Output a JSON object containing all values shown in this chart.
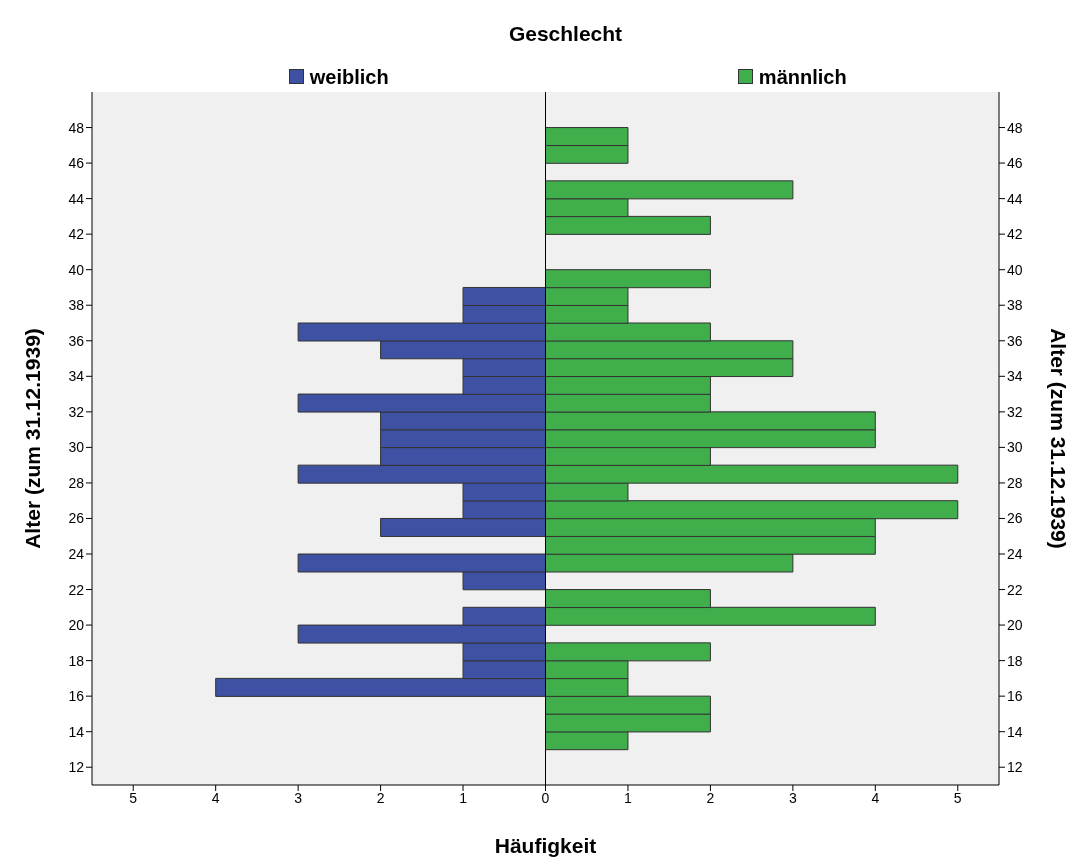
{
  "chart_data": {
    "type": "bar",
    "orientation": "horizontal",
    "stacked": true,
    "legend_title": "Geschlecht",
    "xlabel": "Häufigkeit",
    "ylabel": "Alter (zum 31.12.1939)",
    "y2label": "Alter (zum 31.12.1939)",
    "x": [
      13.5,
      14.5,
      15.5,
      16.5,
      17.5,
      18.5,
      19.5,
      20.5,
      21.5,
      22.5,
      23.5,
      24.5,
      25.5,
      26.5,
      27.5,
      28.5,
      29.5,
      30.5,
      31.5,
      32.5,
      33.5,
      34.5,
      35.5,
      36.5,
      37.5,
      38.5,
      39.5,
      40.5,
      41.5,
      42.5,
      43.5,
      44.5,
      45.5,
      46.5,
      47.5
    ],
    "series": [
      {
        "name": "weiblich",
        "color": "#3f51a3",
        "values": [
          0,
          0,
          0,
          -4,
          -1,
          -1,
          -3,
          -1,
          0,
          -1,
          -3,
          0,
          -2,
          -1,
          -1,
          -3,
          -2,
          -2,
          -2,
          -3,
          -1,
          -1,
          -2,
          -3,
          -1,
          -1,
          0,
          0,
          0,
          0,
          0,
          0,
          0,
          0,
          0
        ]
      },
      {
        "name": "männlich",
        "color": "#3fae4b",
        "values": [
          1,
          2,
          2,
          1,
          1,
          2,
          0,
          4,
          2,
          0,
          3,
          4,
          4,
          5,
          1,
          5,
          2,
          4,
          4,
          2,
          2,
          3,
          3,
          2,
          1,
          1,
          2,
          0,
          0,
          2,
          1,
          3,
          0,
          1,
          1
        ]
      }
    ],
    "xlim": [
      -5.5,
      5.5
    ],
    "xticks": [
      {
        "value": -5,
        "label": "5"
      },
      {
        "value": -4,
        "label": "4"
      },
      {
        "value": -3,
        "label": "3"
      },
      {
        "value": -2,
        "label": "2"
      },
      {
        "value": -1,
        "label": "1"
      },
      0,
      1,
      2,
      3,
      4,
      5
    ],
    "ylim": [
      11,
      50
    ],
    "yticks": [
      12,
      14,
      16,
      18,
      20,
      22,
      24,
      26,
      28,
      30,
      32,
      34,
      36,
      38,
      40,
      42,
      44,
      46,
      48
    ],
    "y2lim": [
      11,
      50
    ],
    "y2ticks": [
      12,
      14,
      16,
      18,
      20,
      22,
      24,
      26,
      28,
      30,
      32,
      34,
      36,
      38,
      40,
      42,
      44,
      46,
      48
    ],
    "ref_lines": [
      {
        "axis": "x",
        "value": 0,
        "color": "#000000"
      }
    ],
    "legend": "top",
    "grid": false
  }
}
